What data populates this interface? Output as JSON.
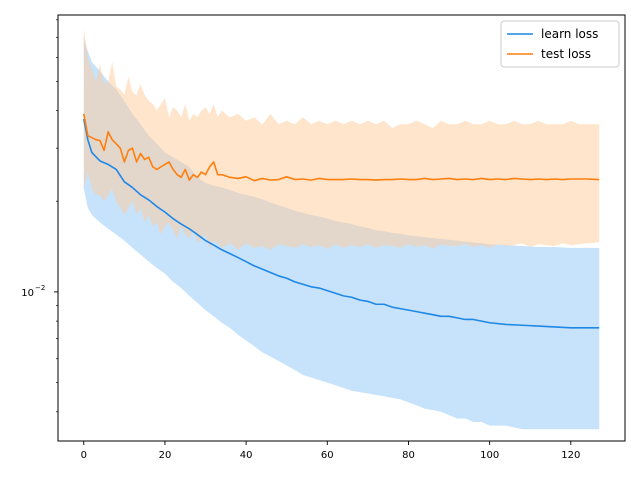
{
  "chart_data": {
    "type": "line",
    "title": "",
    "xlabel": "",
    "ylabel": "",
    "y_scale": "log",
    "xlim": [
      -6.35,
      133.35
    ],
    "ylim": [
      0.0032,
      0.083
    ],
    "x_ticks": [
      0,
      20,
      40,
      60,
      80,
      100,
      120
    ],
    "x_tick_labels": [
      "0",
      "20",
      "40",
      "60",
      "80",
      "100",
      "120"
    ],
    "y_ticks_major": [
      0.01
    ],
    "y_tick_labels": [
      {
        "base": "10",
        "exp": "−2"
      }
    ],
    "y_ticks_minor": [
      0.004,
      0.005,
      0.006,
      0.007,
      0.008,
      0.009,
      0.02,
      0.03,
      0.04,
      0.05,
      0.06,
      0.07,
      0.08
    ],
    "grid": false,
    "legend_position": "upper right",
    "series": [
      {
        "name": "learn loss",
        "color": "#1f77b4",
        "line_color": "#1f88e5",
        "band_color": "#90c8fa",
        "x": [
          0,
          1,
          2,
          4,
          6,
          8,
          10,
          12,
          14,
          16,
          18,
          20,
          22,
          24,
          26,
          28,
          30,
          32,
          34,
          36,
          38,
          40,
          42,
          44,
          46,
          48,
          50,
          52,
          54,
          56,
          58,
          60,
          62,
          64,
          66,
          68,
          70,
          72,
          74,
          76,
          78,
          80,
          82,
          84,
          86,
          88,
          90,
          92,
          94,
          96,
          98,
          100,
          104,
          108,
          112,
          116,
          120,
          124,
          127
        ],
        "mean": [
          0.0375,
          0.032,
          0.029,
          0.0272,
          0.0265,
          0.0255,
          0.0232,
          0.0222,
          0.021,
          0.0202,
          0.0192,
          0.0184,
          0.0175,
          0.0168,
          0.0162,
          0.0155,
          0.0148,
          0.0143,
          0.0138,
          0.0134,
          0.013,
          0.0126,
          0.0122,
          0.0119,
          0.0116,
          0.0113,
          0.0111,
          0.0108,
          0.0106,
          0.0104,
          0.0103,
          0.0101,
          0.0099,
          0.0097,
          0.0096,
          0.0094,
          0.0093,
          0.0091,
          0.0091,
          0.0089,
          0.0088,
          0.0087,
          0.0086,
          0.0085,
          0.0084,
          0.0083,
          0.0083,
          0.0082,
          0.0081,
          0.0081,
          0.008,
          0.0079,
          0.0078,
          0.00775,
          0.0077,
          0.00765,
          0.0076,
          0.0076,
          0.0076
        ],
        "upper": [
          0.07,
          0.063,
          0.058,
          0.054,
          0.05,
          0.047,
          0.043,
          0.039,
          0.036,
          0.033,
          0.031,
          0.029,
          0.028,
          0.027,
          0.026,
          0.024,
          0.023,
          0.0225,
          0.0222,
          0.0218,
          0.0213,
          0.021,
          0.0207,
          0.0203,
          0.0198,
          0.0194,
          0.019,
          0.0186,
          0.0183,
          0.018,
          0.0178,
          0.0175,
          0.0172,
          0.017,
          0.0168,
          0.0165,
          0.0163,
          0.016,
          0.0159,
          0.0157,
          0.0156,
          0.0154,
          0.0153,
          0.0152,
          0.0151,
          0.015,
          0.0149,
          0.0148,
          0.0147,
          0.0146,
          0.0145,
          0.0144,
          0.0143,
          0.0142,
          0.0141,
          0.0141,
          0.014,
          0.014,
          0.014
        ],
        "lower": [
          0.022,
          0.019,
          0.018,
          0.017,
          0.0162,
          0.0155,
          0.0148,
          0.014,
          0.0133,
          0.0126,
          0.012,
          0.0115,
          0.0108,
          0.0103,
          0.0097,
          0.0092,
          0.0087,
          0.0083,
          0.0079,
          0.0076,
          0.0072,
          0.0069,
          0.0066,
          0.0063,
          0.0061,
          0.0059,
          0.0057,
          0.0055,
          0.0053,
          0.0052,
          0.0051,
          0.005,
          0.0049,
          0.0048,
          0.0047,
          0.00465,
          0.0046,
          0.00455,
          0.0045,
          0.00445,
          0.0044,
          0.0043,
          0.0042,
          0.0041,
          0.00405,
          0.004,
          0.0039,
          0.0038,
          0.0038,
          0.0037,
          0.0037,
          0.0036,
          0.0036,
          0.0035,
          0.0035,
          0.0035,
          0.0035,
          0.0035,
          0.0035
        ]
      },
      {
        "name": "test loss",
        "color": "#ff7f0e",
        "line_color": "#ff7f0e",
        "band_color": "#ffcc99",
        "x": [
          0,
          1,
          2,
          3,
          4,
          5,
          6,
          7,
          8,
          9,
          10,
          11,
          12,
          13,
          14,
          15,
          16,
          17,
          18,
          19,
          20,
          21,
          22,
          23,
          24,
          25,
          26,
          27,
          28,
          29,
          30,
          31,
          32,
          33,
          34,
          36,
          38,
          40,
          42,
          44,
          46,
          48,
          50,
          52,
          54,
          56,
          58,
          60,
          62,
          64,
          66,
          68,
          70,
          72,
          74,
          76,
          78,
          80,
          82,
          84,
          86,
          88,
          90,
          92,
          94,
          96,
          98,
          100,
          102,
          104,
          106,
          108,
          110,
          112,
          114,
          116,
          118,
          120,
          122,
          124,
          127
        ],
        "mean": [
          0.039,
          0.033,
          0.0325,
          0.032,
          0.0318,
          0.0295,
          0.034,
          0.032,
          0.031,
          0.03,
          0.027,
          0.0295,
          0.03,
          0.027,
          0.0288,
          0.0275,
          0.028,
          0.026,
          0.0255,
          0.026,
          0.0265,
          0.027,
          0.0255,
          0.0245,
          0.024,
          0.0255,
          0.0235,
          0.0245,
          0.024,
          0.025,
          0.0245,
          0.026,
          0.027,
          0.0245,
          0.0245,
          0.024,
          0.0238,
          0.0241,
          0.0234,
          0.0238,
          0.0235,
          0.0236,
          0.0241,
          0.0236,
          0.0237,
          0.0235,
          0.0238,
          0.0236,
          0.0236,
          0.0236,
          0.0237,
          0.0236,
          0.0236,
          0.0235,
          0.0236,
          0.0236,
          0.0237,
          0.0236,
          0.0236,
          0.0238,
          0.0236,
          0.0237,
          0.0238,
          0.0236,
          0.0237,
          0.0236,
          0.0238,
          0.0236,
          0.0237,
          0.0236,
          0.0238,
          0.0237,
          0.0236,
          0.0237,
          0.0236,
          0.0237,
          0.0236,
          0.0237,
          0.0237,
          0.0237,
          0.0236
        ],
        "upper": [
          0.075,
          0.06,
          0.055,
          0.05,
          0.057,
          0.049,
          0.05,
          0.058,
          0.048,
          0.047,
          0.045,
          0.052,
          0.046,
          0.045,
          0.049,
          0.045,
          0.043,
          0.042,
          0.04,
          0.042,
          0.044,
          0.038,
          0.041,
          0.04,
          0.038,
          0.042,
          0.037,
          0.039,
          0.038,
          0.04,
          0.041,
          0.039,
          0.042,
          0.038,
          0.04,
          0.038,
          0.039,
          0.037,
          0.038,
          0.036,
          0.039,
          0.036,
          0.037,
          0.036,
          0.038,
          0.036,
          0.037,
          0.036,
          0.037,
          0.036,
          0.037,
          0.036,
          0.037,
          0.036,
          0.037,
          0.035,
          0.036,
          0.036,
          0.037,
          0.036,
          0.035,
          0.037,
          0.036,
          0.036,
          0.037,
          0.036,
          0.036,
          0.037,
          0.036,
          0.036,
          0.037,
          0.036,
          0.036,
          0.037,
          0.036,
          0.036,
          0.036,
          0.037,
          0.036,
          0.036,
          0.036
        ],
        "lower": [
          0.022,
          0.025,
          0.022,
          0.021,
          0.021,
          0.02,
          0.021,
          0.022,
          0.02,
          0.019,
          0.018,
          0.019,
          0.02,
          0.018,
          0.019,
          0.017,
          0.018,
          0.0165,
          0.017,
          0.0155,
          0.0165,
          0.017,
          0.016,
          0.015,
          0.0165,
          0.0155,
          0.015,
          0.016,
          0.0145,
          0.015,
          0.0155,
          0.014,
          0.0148,
          0.0145,
          0.014,
          0.0145,
          0.0138,
          0.0145,
          0.014,
          0.0142,
          0.0138,
          0.0144,
          0.0142,
          0.014,
          0.0144,
          0.0141,
          0.0143,
          0.0139,
          0.0144,
          0.014,
          0.0143,
          0.0141,
          0.0144,
          0.014,
          0.0143,
          0.0142,
          0.014,
          0.0144,
          0.0141,
          0.0143,
          0.0139,
          0.0144,
          0.0142,
          0.0142,
          0.0144,
          0.0141,
          0.0143,
          0.014,
          0.0144,
          0.0142,
          0.0143,
          0.0145,
          0.0141,
          0.0144,
          0.0143,
          0.0142,
          0.0145,
          0.0143,
          0.0144,
          0.0145,
          0.0146
        ]
      }
    ]
  }
}
